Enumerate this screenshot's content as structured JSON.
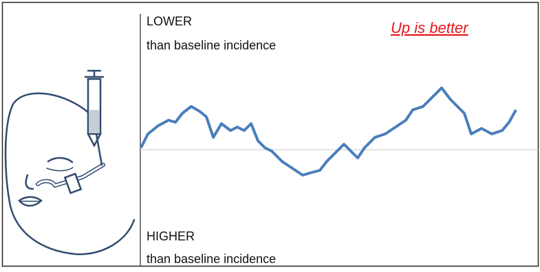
{
  "chart_data": {
    "type": "line",
    "annotations": [
      "LOWER",
      "than baseline incidence",
      "Up is better",
      "HIGHER",
      "than baseline incidence"
    ],
    "x": [
      205,
      215,
      230,
      245,
      255,
      265,
      278,
      290,
      300,
      310,
      322,
      335,
      345,
      355,
      365,
      375,
      385,
      395,
      410,
      425,
      440,
      450,
      465,
      475,
      490,
      500,
      510,
      520,
      530,
      545,
      560,
      575,
      590,
      600,
      615,
      630,
      642,
      655,
      665,
      675,
      685,
      700,
      715,
      730,
      740,
      750
    ],
    "series": [
      {
        "color": "#4a7ebb",
        "values": [
          3,
          23,
          35,
          43,
          40,
          53,
          63,
          56,
          48,
          18,
          38,
          28,
          33,
          28,
          38,
          13,
          3,
          -2,
          -17,
          -27,
          -37,
          -34,
          -30,
          -17,
          -2,
          8,
          -2,
          -12,
          3,
          18,
          23,
          33,
          43,
          58,
          63,
          78,
          90,
          73,
          63,
          53,
          23,
          31,
          23,
          28,
          40,
          58
        ]
      }
    ],
    "xlim": [
      204,
      783
    ],
    "ylim": [
      -170,
      215
    ],
    "baseline": 0,
    "annotation_color": "#e8161b"
  }
}
